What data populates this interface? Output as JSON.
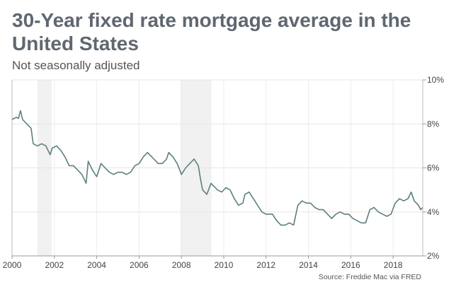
{
  "chart_data": {
    "type": "line",
    "title": "30-Year fixed rate mortgage average in the United States",
    "subtitle": "Not seasonally adjusted",
    "source": "Source: Freddie Mac via FRED",
    "xlim": [
      2000,
      2019.4
    ],
    "ylim": [
      2,
      10
    ],
    "x_ticks": [
      2000,
      2002,
      2004,
      2006,
      2008,
      2010,
      2012,
      2014,
      2016,
      2018
    ],
    "y_ticks": [
      2,
      4,
      6,
      8,
      10
    ],
    "y_tick_format": "%",
    "grid": true,
    "y_axis_side": "right",
    "recessions": [
      [
        2001.2,
        2001.87
      ],
      [
        2007.95,
        2009.42
      ]
    ],
    "series": [
      {
        "color": "#5e7f7f",
        "points": [
          [
            2000.0,
            8.2
          ],
          [
            2000.2,
            8.3
          ],
          [
            2000.3,
            8.25
          ],
          [
            2000.4,
            8.6
          ],
          [
            2000.5,
            8.2
          ],
          [
            2000.7,
            8.0
          ],
          [
            2000.9,
            7.8
          ],
          [
            2001.0,
            7.1
          ],
          [
            2001.2,
            7.0
          ],
          [
            2001.4,
            7.1
          ],
          [
            2001.6,
            7.0
          ],
          [
            2001.8,
            6.6
          ],
          [
            2001.9,
            6.9
          ],
          [
            2002.1,
            7.0
          ],
          [
            2002.3,
            6.8
          ],
          [
            2002.5,
            6.5
          ],
          [
            2002.7,
            6.1
          ],
          [
            2002.9,
            6.1
          ],
          [
            2003.1,
            5.9
          ],
          [
            2003.3,
            5.7
          ],
          [
            2003.5,
            5.3
          ],
          [
            2003.6,
            6.3
          ],
          [
            2003.8,
            5.9
          ],
          [
            2004.0,
            5.6
          ],
          [
            2004.2,
            6.2
          ],
          [
            2004.4,
            6.0
          ],
          [
            2004.6,
            5.8
          ],
          [
            2004.8,
            5.7
          ],
          [
            2005.0,
            5.8
          ],
          [
            2005.2,
            5.8
          ],
          [
            2005.4,
            5.7
          ],
          [
            2005.6,
            5.8
          ],
          [
            2005.8,
            6.1
          ],
          [
            2006.0,
            6.2
          ],
          [
            2006.2,
            6.5
          ],
          [
            2006.4,
            6.7
          ],
          [
            2006.5,
            6.6
          ],
          [
            2006.7,
            6.4
          ],
          [
            2006.9,
            6.2
          ],
          [
            2007.1,
            6.2
          ],
          [
            2007.3,
            6.4
          ],
          [
            2007.4,
            6.7
          ],
          [
            2007.6,
            6.5
          ],
          [
            2007.8,
            6.2
          ],
          [
            2008.0,
            5.7
          ],
          [
            2008.2,
            6.0
          ],
          [
            2008.4,
            6.2
          ],
          [
            2008.6,
            6.4
          ],
          [
            2008.8,
            6.1
          ],
          [
            2008.9,
            5.5
          ],
          [
            2009.0,
            5.0
          ],
          [
            2009.2,
            4.8
          ],
          [
            2009.4,
            5.3
          ],
          [
            2009.5,
            5.2
          ],
          [
            2009.7,
            5.0
          ],
          [
            2009.9,
            4.9
          ],
          [
            2010.1,
            5.1
          ],
          [
            2010.3,
            5.0
          ],
          [
            2010.5,
            4.6
          ],
          [
            2010.7,
            4.3
          ],
          [
            2010.9,
            4.4
          ],
          [
            2011.0,
            4.8
          ],
          [
            2011.2,
            4.9
          ],
          [
            2011.4,
            4.6
          ],
          [
            2011.6,
            4.3
          ],
          [
            2011.8,
            4.0
          ],
          [
            2012.0,
            3.9
          ],
          [
            2012.3,
            3.9
          ],
          [
            2012.5,
            3.6
          ],
          [
            2012.7,
            3.4
          ],
          [
            2012.9,
            3.4
          ],
          [
            2013.1,
            3.5
          ],
          [
            2013.3,
            3.4
          ],
          [
            2013.5,
            4.3
          ],
          [
            2013.7,
            4.5
          ],
          [
            2013.9,
            4.4
          ],
          [
            2014.1,
            4.4
          ],
          [
            2014.3,
            4.2
          ],
          [
            2014.5,
            4.1
          ],
          [
            2014.7,
            4.1
          ],
          [
            2014.9,
            3.9
          ],
          [
            2015.1,
            3.7
          ],
          [
            2015.3,
            3.9
          ],
          [
            2015.5,
            4.0
          ],
          [
            2015.7,
            3.9
          ],
          [
            2015.9,
            3.9
          ],
          [
            2016.1,
            3.7
          ],
          [
            2016.3,
            3.6
          ],
          [
            2016.5,
            3.5
          ],
          [
            2016.7,
            3.5
          ],
          [
            2016.9,
            4.1
          ],
          [
            2017.1,
            4.2
          ],
          [
            2017.3,
            4.0
          ],
          [
            2017.5,
            3.9
          ],
          [
            2017.7,
            3.8
          ],
          [
            2017.9,
            3.9
          ],
          [
            2018.1,
            4.4
          ],
          [
            2018.3,
            4.6
          ],
          [
            2018.5,
            4.5
          ],
          [
            2018.7,
            4.6
          ],
          [
            2018.85,
            4.9
          ],
          [
            2019.0,
            4.5
          ],
          [
            2019.2,
            4.3
          ],
          [
            2019.3,
            4.1
          ],
          [
            2019.4,
            4.2
          ]
        ]
      }
    ]
  }
}
